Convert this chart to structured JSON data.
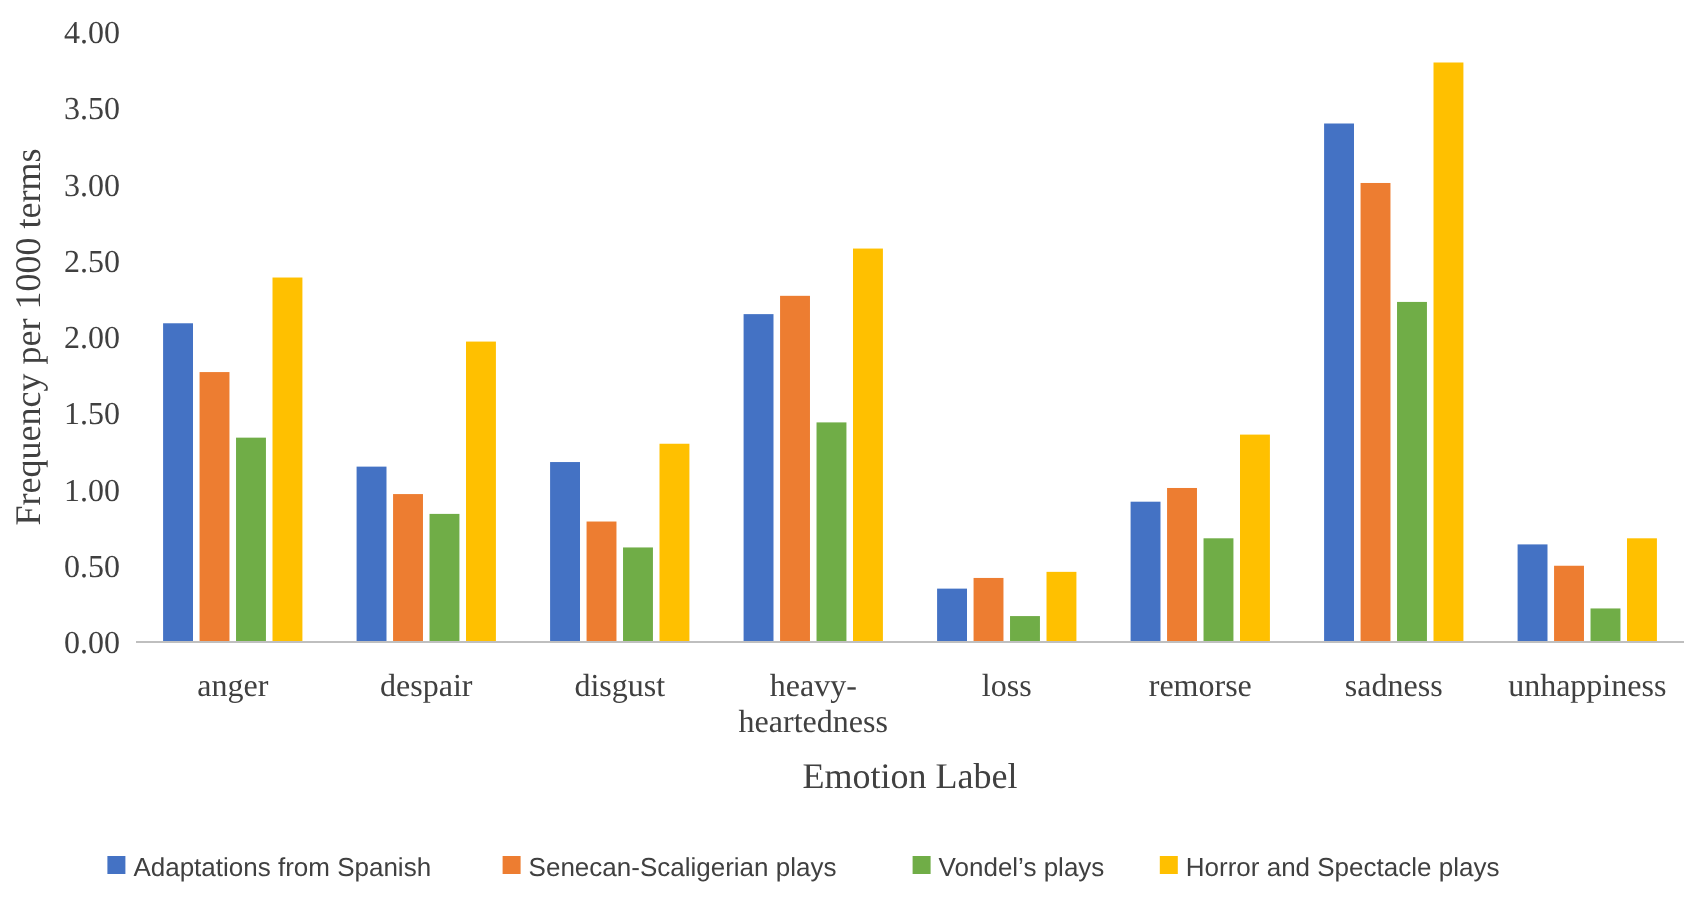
{
  "chart_data": {
    "type": "bar",
    "xlabel": "Emotion Label",
    "ylabel": "Frequency per 1000 terms",
    "categories": [
      "anger",
      "despair",
      "disgust",
      "heavy-heartedness",
      "loss",
      "remorse",
      "sadness",
      "unhappiness"
    ],
    "series": [
      {
        "name": "Adaptations from Spanish",
        "color": "#4472c4",
        "values": [
          2.09,
          1.15,
          1.18,
          2.15,
          0.35,
          0.92,
          3.4,
          0.64
        ]
      },
      {
        "name": "Senecan-Scaligerian plays",
        "color": "#ed7d31",
        "values": [
          1.77,
          0.97,
          0.79,
          2.27,
          0.42,
          1.01,
          3.01,
          0.5
        ]
      },
      {
        "name": "Vondel’s plays",
        "color": "#70ad47",
        "values": [
          1.34,
          0.84,
          0.62,
          1.44,
          0.17,
          0.68,
          2.23,
          0.22
        ]
      },
      {
        "name": "Horror and Spectacle plays",
        "color": "#ffc000",
        "values": [
          2.39,
          1.97,
          1.3,
          2.58,
          0.46,
          1.36,
          3.8,
          0.68
        ]
      }
    ],
    "ylim": [
      0,
      4
    ],
    "yticks": [
      {
        "value": 0,
        "label": "0.00"
      },
      {
        "value": 0.5,
        "label": "0.50"
      },
      {
        "value": 1,
        "label": "1.00"
      },
      {
        "value": 1.5,
        "label": "1.50"
      },
      {
        "value": 2,
        "label": "2.00"
      },
      {
        "value": 2.5,
        "label": "2.50"
      },
      {
        "value": 3,
        "label": "3.00"
      },
      {
        "value": 3.5,
        "label": "3.50"
      },
      {
        "value": 4,
        "label": "4.00"
      }
    ],
    "grid": false,
    "legend": "bottom"
  }
}
